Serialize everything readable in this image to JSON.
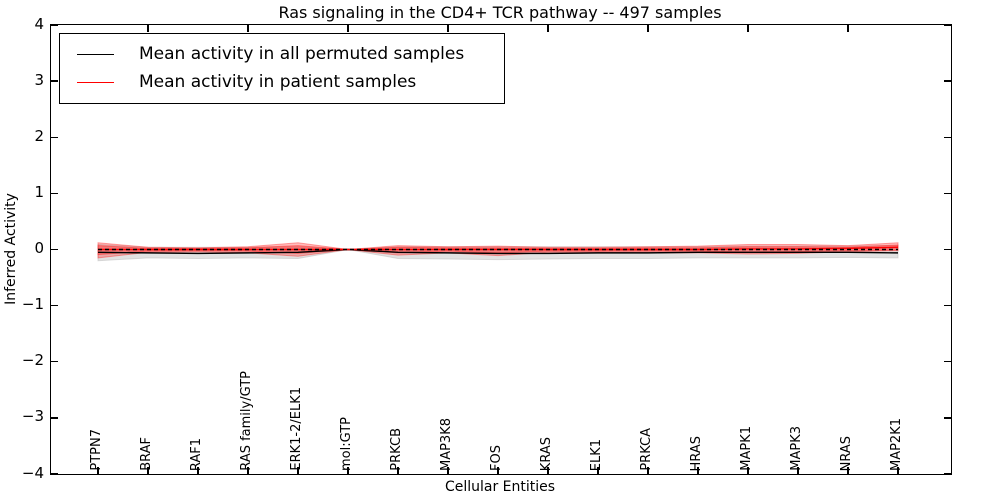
{
  "title": "Ras signaling in the CD4+ TCR pathway -- 497 samples",
  "xlabel": "Cellular Entities",
  "ylabel": "Inferred Activity",
  "legend": [
    {
      "label": "Mean activity in all permuted samples",
      "color": "#000000"
    },
    {
      "label": "Mean activity in patient samples",
      "color": "#ff0000"
    }
  ],
  "chart_data": {
    "type": "line",
    "categories": [
      "PTPN7",
      "BRAF",
      "RAF1",
      "RAS family/GTP",
      "ERK1-2/ELK1",
      "mol:GTP",
      "PRKCB",
      "MAP3K8",
      "FOS",
      "KRAS",
      "ELK1",
      "PRKCA",
      "HRAS",
      "MAPK1",
      "MAPK3",
      "NRAS",
      "MAP2K1"
    ],
    "ylim": [
      -4,
      4
    ],
    "yticks": [
      4,
      3,
      2,
      1,
      0,
      -1,
      -2,
      -3,
      -4
    ],
    "ytick_labels": [
      "4",
      "3",
      "2",
      "1",
      "0",
      "−1",
      "−2",
      "−3",
      "−4"
    ],
    "grid": false,
    "legend_position": "upper left",
    "bands": [
      {
        "name": "permuted-range",
        "color": "#bfbfbf",
        "opacity": 0.45,
        "upper": [
          0.09,
          0.04,
          0.04,
          0.04,
          0.05,
          0.0,
          0.05,
          0.05,
          0.05,
          0.05,
          0.05,
          0.05,
          0.05,
          0.06,
          0.06,
          0.06,
          0.07
        ],
        "lower": [
          -0.2,
          -0.15,
          -0.16,
          -0.15,
          -0.16,
          0.0,
          -0.16,
          -0.17,
          -0.18,
          -0.17,
          -0.16,
          -0.16,
          -0.15,
          -0.15,
          -0.15,
          -0.14,
          -0.15
        ]
      },
      {
        "name": "patient-range-outer",
        "color": "#ff2020",
        "opacity": 0.3,
        "upper": [
          0.12,
          0.04,
          0.03,
          0.05,
          0.12,
          0.0,
          0.07,
          0.05,
          0.06,
          0.04,
          0.04,
          0.05,
          0.06,
          0.09,
          0.09,
          0.07,
          0.12
        ],
        "lower": [
          -0.15,
          -0.05,
          -0.04,
          -0.06,
          -0.12,
          0.0,
          -0.1,
          -0.06,
          -0.11,
          -0.05,
          -0.05,
          -0.06,
          -0.06,
          -0.08,
          -0.07,
          -0.04,
          -0.02
        ]
      },
      {
        "name": "patient-range-inner",
        "color": "#ff2020",
        "opacity": 0.35,
        "upper": [
          0.07,
          0.02,
          0.02,
          0.03,
          0.07,
          0.0,
          0.04,
          0.03,
          0.03,
          0.02,
          0.02,
          0.03,
          0.03,
          0.05,
          0.05,
          0.04,
          0.08
        ],
        "lower": [
          -0.09,
          -0.03,
          -0.02,
          -0.03,
          -0.07,
          0.0,
          -0.06,
          -0.03,
          -0.06,
          -0.03,
          -0.03,
          -0.03,
          -0.03,
          -0.05,
          -0.04,
          -0.02,
          -0.01
        ]
      }
    ],
    "series": [
      {
        "name": "Mean activity in all permuted samples",
        "slug": "permuted-mean-line",
        "color": "#000000",
        "style": "solid",
        "values": [
          -0.05,
          -0.06,
          -0.07,
          -0.06,
          -0.05,
          0.0,
          -0.05,
          -0.06,
          -0.07,
          -0.07,
          -0.06,
          -0.06,
          -0.05,
          -0.05,
          -0.05,
          -0.05,
          -0.06
        ]
      },
      {
        "name": "Mean activity in patient samples",
        "slug": "patient-mean-line",
        "color": "#ff0000",
        "style": "solid",
        "values": [
          0.0,
          0.0,
          0.0,
          0.0,
          0.0,
          0.0,
          0.0,
          0.0,
          0.0,
          0.0,
          0.0,
          0.0,
          0.0,
          0.01,
          0.01,
          0.02,
          0.04
        ]
      },
      {
        "name": "zero-reference",
        "slug": "zero-reference-line",
        "color": "#000000",
        "style": "dashed",
        "values": [
          0,
          0,
          0,
          0,
          0,
          0,
          0,
          0,
          0,
          0,
          0,
          0,
          0,
          0,
          0,
          0,
          0
        ]
      }
    ]
  }
}
